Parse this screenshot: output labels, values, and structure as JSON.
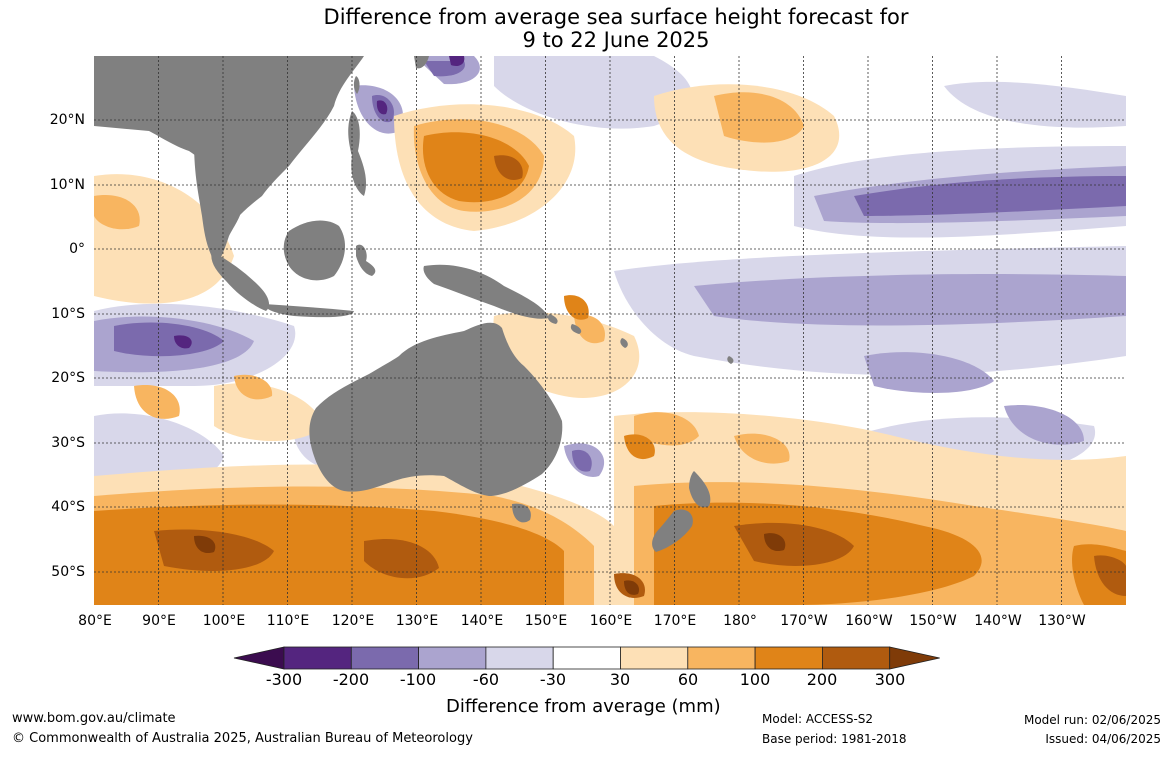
{
  "title": {
    "line1": "Difference from average sea surface height forecast for",
    "line2": "9 to 22 June 2025"
  },
  "map": {
    "region": "Indo-Pacific",
    "land_color": "#808080",
    "ocean_neutral_color": "#ffffff",
    "gridlines": true,
    "lat_labels": [
      "20°N",
      "10°N",
      "0°",
      "10°S",
      "20°S",
      "30°S",
      "40°S",
      "50°S"
    ],
    "lon_labels": [
      "80°E",
      "90°E",
      "100°E",
      "110°E",
      "120°E",
      "130°E",
      "140°E",
      "150°E",
      "160°E",
      "170°E",
      "180°",
      "170°W",
      "160°W",
      "150°W",
      "140°W",
      "130°W"
    ]
  },
  "legend": {
    "title": "Difference from average (mm)",
    "ticks": [
      "-300",
      "-200",
      "-100",
      "-60",
      "-30",
      "30",
      "60",
      "100",
      "200",
      "300"
    ],
    "colors": [
      "#3b0c4f",
      "#54257f",
      "#7b6aad",
      "#aba4cf",
      "#d8d7ea",
      "#ffffff",
      "#fde0b6",
      "#f8b560",
      "#e08418",
      "#b05b0f",
      "#7f3b08"
    ]
  },
  "footer": {
    "url": "www.bom.gov.au/climate",
    "copyright": "© Commonwealth of Australia 2025, Australian Bureau of Meteorology",
    "model": "Model: ACCESS-S2",
    "base_period": "Base period: 1981-2018",
    "model_run": "Model run: 02/06/2025",
    "issued": "Issued: 04/06/2025"
  }
}
